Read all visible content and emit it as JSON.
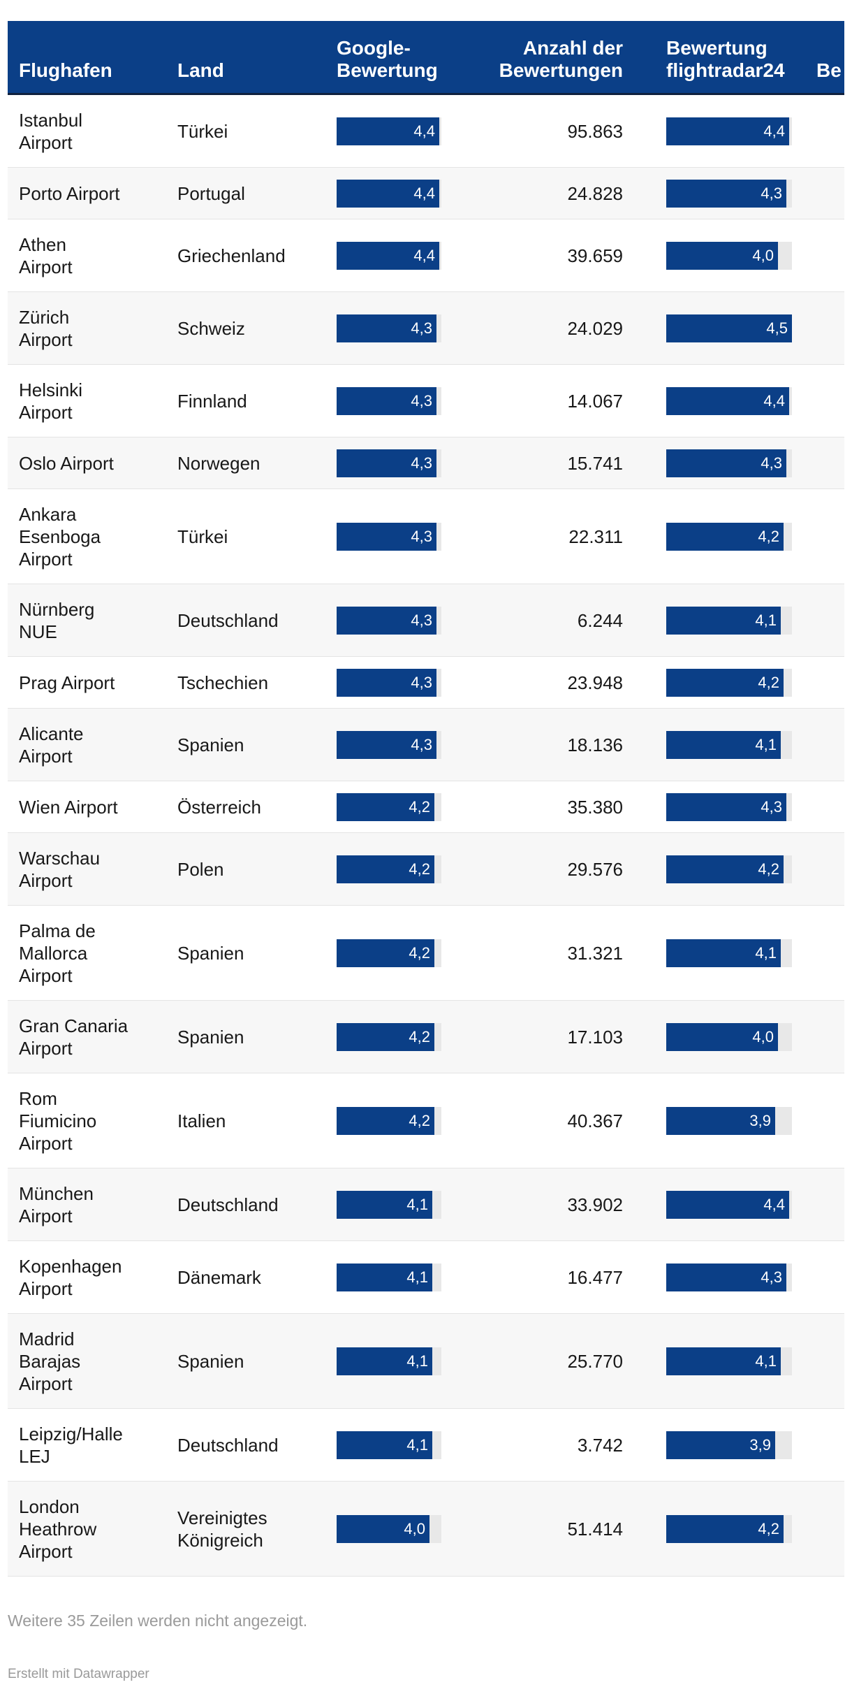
{
  "chart_data": {
    "type": "table",
    "columns": [
      {
        "label": "Flughafen"
      },
      {
        "label": "Land"
      },
      {
        "label": "Google-\nBewertung"
      },
      {
        "label": "Anzahl der\nBewertungen"
      },
      {
        "label": "Bewertung\nflightradar24"
      },
      {
        "label": "Be"
      }
    ],
    "bar_max": 4.5,
    "rows": [
      {
        "airport": "Istanbul\nAirport",
        "country": "Türkei",
        "google": 4.4,
        "google_label": "4,4",
        "count": "95.863",
        "fr24": 4.4,
        "fr24_label": "4,4"
      },
      {
        "airport": "Porto Airport",
        "country": "Portugal",
        "google": 4.4,
        "google_label": "4,4",
        "count": "24.828",
        "fr24": 4.3,
        "fr24_label": "4,3"
      },
      {
        "airport": "Athen\nAirport",
        "country": "Griechenland",
        "google": 4.4,
        "google_label": "4,4",
        "count": "39.659",
        "fr24": 4.0,
        "fr24_label": "4,0"
      },
      {
        "airport": "Zürich\nAirport",
        "country": "Schweiz",
        "google": 4.3,
        "google_label": "4,3",
        "count": "24.029",
        "fr24": 4.5,
        "fr24_label": "4,5"
      },
      {
        "airport": "Helsinki\nAirport",
        "country": "Finnland",
        "google": 4.3,
        "google_label": "4,3",
        "count": "14.067",
        "fr24": 4.4,
        "fr24_label": "4,4"
      },
      {
        "airport": "Oslo Airport",
        "country": "Norwegen",
        "google": 4.3,
        "google_label": "4,3",
        "count": "15.741",
        "fr24": 4.3,
        "fr24_label": "4,3"
      },
      {
        "airport": "Ankara\nEsenboga\nAirport",
        "country": "Türkei",
        "google": 4.3,
        "google_label": "4,3",
        "count": "22.311",
        "fr24": 4.2,
        "fr24_label": "4,2"
      },
      {
        "airport": "Nürnberg\nNUE",
        "country": "Deutschland",
        "google": 4.3,
        "google_label": "4,3",
        "count": "6.244",
        "fr24": 4.1,
        "fr24_label": "4,1"
      },
      {
        "airport": "Prag Airport",
        "country": "Tschechien",
        "google": 4.3,
        "google_label": "4,3",
        "count": "23.948",
        "fr24": 4.2,
        "fr24_label": "4,2"
      },
      {
        "airport": "Alicante\nAirport",
        "country": "Spanien",
        "google": 4.3,
        "google_label": "4,3",
        "count": "18.136",
        "fr24": 4.1,
        "fr24_label": "4,1"
      },
      {
        "airport": "Wien Airport",
        "country": "Österreich",
        "google": 4.2,
        "google_label": "4,2",
        "count": "35.380",
        "fr24": 4.3,
        "fr24_label": "4,3"
      },
      {
        "airport": "Warschau\nAirport",
        "country": "Polen",
        "google": 4.2,
        "google_label": "4,2",
        "count": "29.576",
        "fr24": 4.2,
        "fr24_label": "4,2"
      },
      {
        "airport": "Palma de\nMallorca\nAirport",
        "country": "Spanien",
        "google": 4.2,
        "google_label": "4,2",
        "count": "31.321",
        "fr24": 4.1,
        "fr24_label": "4,1"
      },
      {
        "airport": "Gran Canaria\nAirport",
        "country": "Spanien",
        "google": 4.2,
        "google_label": "4,2",
        "count": "17.103",
        "fr24": 4.0,
        "fr24_label": "4,0"
      },
      {
        "airport": "Rom\nFiumicino\nAirport",
        "country": "Italien",
        "google": 4.2,
        "google_label": "4,2",
        "count": "40.367",
        "fr24": 3.9,
        "fr24_label": "3,9"
      },
      {
        "airport": "München\nAirport",
        "country": "Deutschland",
        "google": 4.1,
        "google_label": "4,1",
        "count": "33.902",
        "fr24": 4.4,
        "fr24_label": "4,4"
      },
      {
        "airport": "Kopenhagen\nAirport",
        "country": "Dänemark",
        "google": 4.1,
        "google_label": "4,1",
        "count": "16.477",
        "fr24": 4.3,
        "fr24_label": "4,3"
      },
      {
        "airport": "Madrid\nBarajas\nAirport",
        "country": "Spanien",
        "google": 4.1,
        "google_label": "4,1",
        "count": "25.770",
        "fr24": 4.1,
        "fr24_label": "4,1"
      },
      {
        "airport": "Leipzig/Halle\nLEJ",
        "country": "Deutschland",
        "google": 4.1,
        "google_label": "4,1",
        "count": "3.742",
        "fr24": 3.9,
        "fr24_label": "3,9"
      },
      {
        "airport": "London\nHeathrow\nAirport",
        "country": "Vereinigtes\nKönigreich",
        "google": 4.0,
        "google_label": "4,0",
        "count": "51.414",
        "fr24": 4.2,
        "fr24_label": "4,2"
      }
    ],
    "bar_color": "#0b3f87",
    "header_color": "#0b3f87"
  },
  "footer": {
    "note": "Weitere 35 Zeilen werden nicht angezeigt.",
    "credit": "Erstellt mit Datawrapper"
  }
}
